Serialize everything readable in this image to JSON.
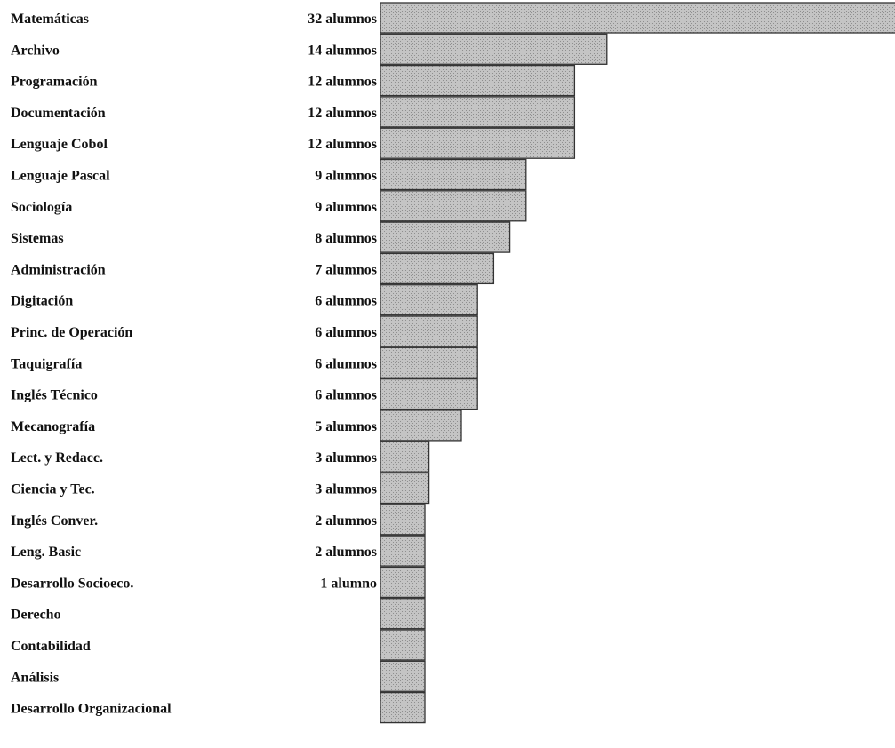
{
  "chart_data": {
    "type": "bar",
    "orientation": "horizontal",
    "categories": [
      "Matemáticas",
      "Archivo",
      "Programación",
      "Documentación",
      "Lenguaje Cobol",
      "Lenguaje Pascal",
      "Sociología",
      "Sistemas",
      "Administración",
      "Digitación",
      "Princ. de Operación",
      "Taquigrafía",
      "Inglés Técnico",
      "Mecanografía",
      "Lect. y Redacc.",
      "Ciencia y Tec.",
      "Inglés Conver.",
      "Leng. Basic",
      "Desarrollo Socioeco.",
      "Derecho",
      "Contabilidad",
      "Análisis",
      "Desarrollo Organizacional"
    ],
    "values": [
      32,
      14,
      12,
      12,
      12,
      9,
      9,
      8,
      7,
      6,
      6,
      6,
      6,
      5,
      3,
      3,
      2,
      2,
      1,
      0,
      0,
      0,
      0
    ],
    "value_labels": [
      "32 alumnos",
      "14 alumnos",
      "12 alumnos",
      "12 alumnos",
      "12 alumnos",
      "9 alumnos",
      "9 alumnos",
      "8 alumnos",
      "7 alumnos",
      "6 alumnos",
      "6 alumnos",
      "6 alumnos",
      "6 alumnos",
      "5 alumnos",
      "3 alumnos",
      "3 alumnos",
      "2 alumnos",
      "2 alumnos",
      "1 alumno",
      "",
      "",
      "",
      ""
    ],
    "bar_color": "#b8b8b8",
    "edge_color": "#333333",
    "grid": false
  }
}
